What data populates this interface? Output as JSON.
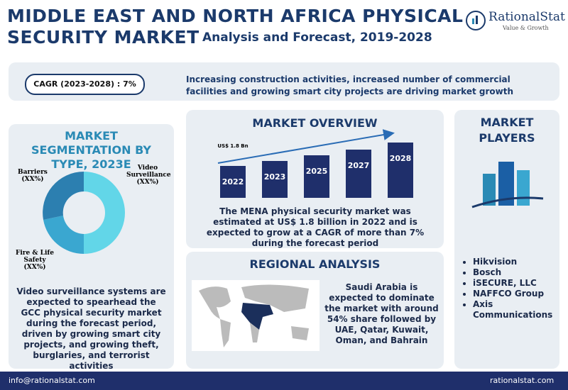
{
  "header": {
    "title_line1": "MIDDLE EAST AND NORTH AFRICA PHYSICAL",
    "title_line2": "SECURITY MARKET",
    "subtitle": "Analysis and Forecast, 2019-2028"
  },
  "logo": {
    "name": "RationalStat",
    "tagline": "Value & Growth"
  },
  "banner": {
    "cagr": "CAGR (2023-2028) : 7%",
    "text": "Increasing construction activities, increased number of commercial facilities and growing smart city projects are driving market growth"
  },
  "segmentation": {
    "title": "MARKET SEGMENTATION BY  TYPE, 2023E",
    "labels": [
      {
        "name": "Barriers",
        "share": "(XX%)"
      },
      {
        "name": "Video Surveillance",
        "share": "(XX%)"
      },
      {
        "name": "Fire & Life Safety",
        "share": "(XX%)"
      }
    ],
    "description": "Video surveillance systems are expected to spearhead the GCC physical security market during the forecast period, driven by growing smart city projects, and growing theft, burglaries, and terrorist activities"
  },
  "overview": {
    "title": "MARKET OVERVIEW",
    "bar_label": "US$ 1.8 Bn",
    "years": [
      "2022",
      "2023",
      "2025",
      "2027",
      "2028"
    ],
    "description": "The MENA physical security market was estimated at US$ 1.8 billion in 2022 and is expected to grow at a CAGR of more than 7% during the forecast period"
  },
  "regional": {
    "title": "REGIONAL ANALYSIS",
    "text": "Saudi Arabia is expected to dominate the market with around 54% share followed by UAE, Qatar, Kuwait, Oman, and Bahrain"
  },
  "players": {
    "title": "MARKET PLAYERS",
    "list": [
      "Hikvision",
      "Bosch",
      "iSECURE, LLC",
      "NAFFCO Group",
      "Axis Communications"
    ]
  },
  "footer": {
    "email": "info@rationalstat.com",
    "website": "rationalstat.com"
  }
}
